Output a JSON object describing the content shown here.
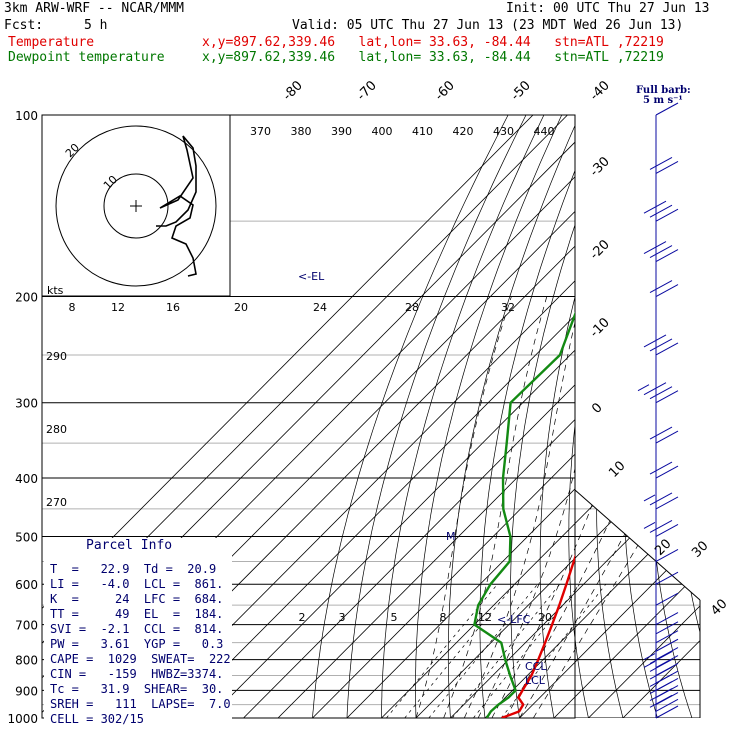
{
  "header": {
    "model": "3km ARW-WRF -- NCAR/MMM",
    "init": "Init: 00 UTC Thu 27 Jun 13",
    "fcst_label": "Fcst:",
    "fcst_value": "5 h",
    "valid": "Valid: 05 UTC Thu 27 Jun 13 (23 MDT Wed 26 Jun 13)",
    "temp_label": "Temperature",
    "temp_info": "x,y=897.62,339.46   lat,lon= 33.63, -84.44   stn=ATL ,72219",
    "dew_label": "Dewpoint temperature",
    "dew_info": "x,y=897.62,339.46   lat,lon= 33.63, -84.44   stn=ATL ,72219"
  },
  "colors": {
    "temperature": "#e00000",
    "dewpoint": "#138a13",
    "wind_barbs": "#0a0aa0",
    "info_text": "#00006e"
  },
  "wind_key": {
    "line1": "Full barb:",
    "line2": "5 m s⁻¹"
  },
  "hodograph": {
    "units_label": "kts",
    "ring_labels": [
      "20",
      "10"
    ]
  },
  "annotations": {
    "el": "<-EL",
    "lfc": "<-LFC",
    "ccl": "CCL",
    "lcl": "LCL",
    "max_marker": "M"
  },
  "pressure_labels": [
    "100",
    "200",
    "300",
    "400",
    "500",
    "600",
    "700",
    "800",
    "900",
    "1000"
  ],
  "isotherm_labels": [
    "-80",
    "-70",
    "-60",
    "-50",
    "-40",
    "-30",
    "-20",
    "-10",
    "0",
    "10",
    "20",
    "30",
    "40"
  ],
  "theta_labels": [
    "370",
    "380",
    "390",
    "400",
    "410",
    "420",
    "430",
    "440"
  ],
  "mixing_ratio_labels": [
    "8",
    "12",
    "16",
    "20",
    "24",
    "28",
    "32"
  ],
  "mixing_ratio_low_labels": [
    "2",
    "3",
    "5",
    "8",
    "12",
    "20"
  ],
  "theta_e_labels": [
    "290",
    "280",
    "270"
  ],
  "parcel_info": {
    "title": "Parcel Info",
    "rows": [
      "T  =   22.9  Td =  20.9",
      "LI =   -4.0  LCL =  861.",
      "K  =     24  LFC =  684.",
      "TT =     49  EL  =  184.",
      "SVI =  -2.1  CCL =  814.",
      "PW =   3.61  YGP =   0.3",
      "CAPE =  1029  SWEAT=  222",
      "CIN =   -159  HWBZ=3374.",
      "Tc =   31.9  SHEAR=  30.",
      "SREH =   111  LAPSE=  7.0",
      "CELL = 302/15"
    ]
  },
  "chart_data": {
    "type": "line",
    "title": "",
    "xlabel": "",
    "ylabel": "",
    "pressure_range_hPa": [
      1000,
      100
    ],
    "y_scale": "log pressure",
    "series": [
      {
        "name": "Temperature",
        "pressure_hPa": [
          1000,
          975,
          950,
          925,
          900,
          850,
          800,
          750,
          700,
          650,
          600,
          550,
          500,
          450,
          400,
          350,
          300,
          250,
          200,
          175,
          150,
          125,
          100
        ],
        "temperature_C": [
          24.8,
          28.0,
          27.2,
          23.8,
          22.9,
          21.2,
          18.6,
          15.7,
          12.5,
          9.0,
          5.0,
          0.6,
          -4.2,
          -9.2,
          -15.0,
          -21.5,
          -29.5,
          -38.8,
          -49.5,
          -57.0,
          -61.0,
          -62.0,
          -65.5
        ]
      },
      {
        "name": "Dewpoint temperature",
        "pressure_hPa": [
          1000,
          975,
          950,
          925,
          900,
          850,
          800,
          750,
          700,
          650,
          600,
          550,
          500,
          450,
          400,
          350,
          300,
          250,
          200,
          175,
          150,
          125,
          100
        ],
        "temperature_C": [
          20.5,
          19.8,
          20.0,
          20.9,
          20.9,
          15.0,
          9.0,
          3.0,
          -10.0,
          -14.5,
          -17.0,
          -18.0,
          -25.0,
          -35.0,
          -44.0,
          -53.0,
          -63.5,
          -63.0,
          -73.5,
          -79.0,
          -84.0,
          -86.0,
          -85.0
        ]
      }
    ],
    "wind_barbs": {
      "pressure_hPa": [
        1000,
        975,
        950,
        925,
        900,
        875,
        850,
        825,
        800,
        775,
        750,
        725,
        700,
        650,
        600,
        550,
        500,
        450,
        400,
        350,
        300,
        250,
        200,
        175,
        150,
        125,
        100
      ],
      "speed_ms": [
        7,
        10,
        12,
        11,
        10,
        10,
        8,
        8,
        7,
        7,
        6,
        6,
        6,
        6,
        7,
        7,
        8,
        9,
        10,
        12,
        14,
        15,
        12,
        15,
        15,
        10,
        5
      ],
      "direction_deg": [
        200,
        210,
        220,
        225,
        230,
        230,
        240,
        240,
        240,
        245,
        250,
        250,
        250,
        255,
        260,
        260,
        260,
        265,
        265,
        270,
        270,
        270,
        260,
        260,
        255,
        250,
        240
      ]
    },
    "parcel": {
      "T": 22.9,
      "Td": 20.9,
      "LI": -4.0,
      "LCL": 861,
      "K": 24,
      "LFC": 684,
      "TT": 49,
      "EL": 184,
      "SVI": -2.1,
      "CCL": 814,
      "PW": 3.61,
      "YGP": 0.3,
      "CAPE": 1029,
      "SWEAT": 222,
      "CIN": -159,
      "HWBZ": 3374,
      "Tc": 31.9,
      "SHEAR": 30,
      "SREH": 111,
      "LAPSE": 7.0,
      "CELL": "302/15"
    }
  }
}
